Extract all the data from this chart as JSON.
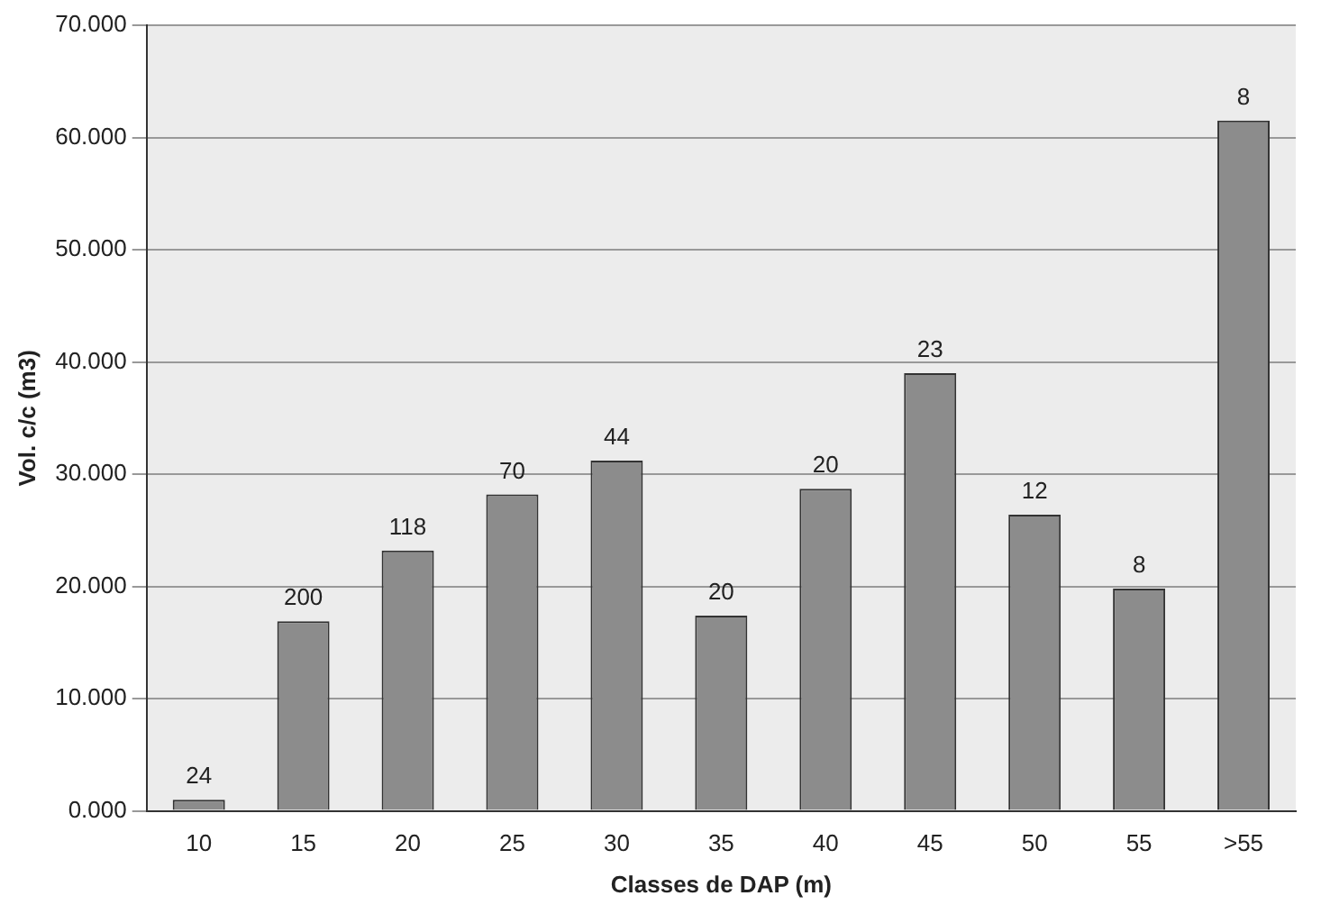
{
  "chart_data": {
    "type": "bar",
    "xlabel": "Classes de DAP (m)",
    "ylabel": "Vol. c/c (m3)",
    "categories": [
      "10",
      "15",
      "20",
      "25",
      "30",
      "35",
      "40",
      "45",
      "50",
      "55",
      ">55"
    ],
    "values": [
      1.0,
      16.9,
      23.2,
      28.2,
      31.2,
      17.4,
      28.7,
      39.0,
      26.4,
      19.8,
      61.5
    ],
    "color": "#8c8c8c",
    "ylim": [
      0,
      70
    ],
    "yticks": [
      {
        "value": 0,
        "label": "0.000"
      },
      {
        "value": 10,
        "label": "10.000"
      },
      {
        "value": 20,
        "label": "20.000"
      },
      {
        "value": 30,
        "label": "30.000"
      },
      {
        "value": 40,
        "label": "40.000"
      },
      {
        "value": 50,
        "label": "50.000"
      },
      {
        "value": 60,
        "label": "60.000"
      },
      {
        "value": 70,
        "label": "70.000"
      }
    ],
    "grid": "y",
    "annotations": [
      {
        "text": "24",
        "x": "10",
        "y": 1.0
      },
      {
        "text": "200",
        "x": "15",
        "y": 16.9
      },
      {
        "text": "118",
        "x": "20",
        "y": 23.2
      },
      {
        "text": "70",
        "x": "25",
        "y": 28.2
      },
      {
        "text": "44",
        "x": "30",
        "y": 31.2
      },
      {
        "text": "20",
        "x": "35",
        "y": 17.4
      },
      {
        "text": "20",
        "x": "40",
        "y": 28.7
      },
      {
        "text": "23",
        "x": "45",
        "y": 39.0
      },
      {
        "text": "12",
        "x": "50",
        "y": 26.4
      },
      {
        "text": "8",
        "x": "55",
        "y": 19.8
      },
      {
        "text": "8",
        "x": ">55",
        "y": 61.5
      }
    ]
  }
}
